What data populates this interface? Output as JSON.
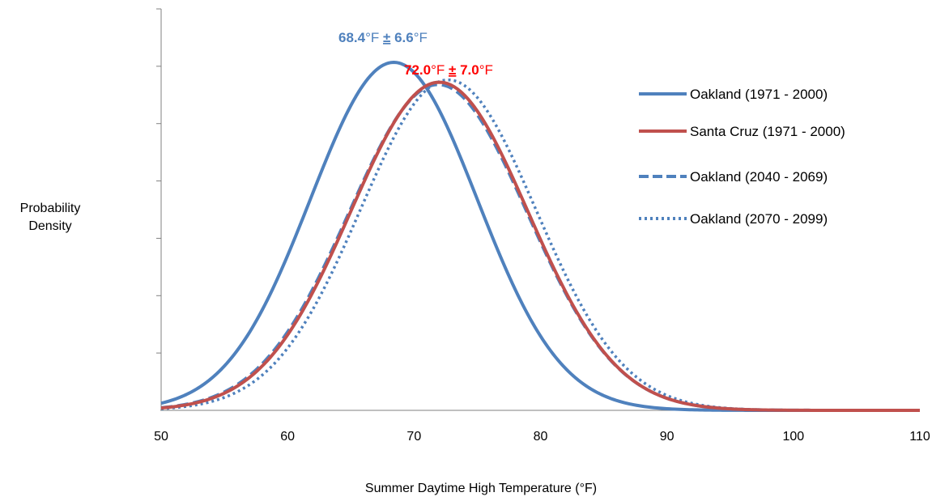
{
  "chart_data": {
    "type": "line",
    "xlabel": "Summer Daytime High Temperature (°F)",
    "ylabel_lines": [
      "Probability",
      "Density"
    ],
    "xlim": [
      50,
      110
    ],
    "x_ticks": [
      50,
      60,
      70,
      80,
      90,
      100,
      110
    ],
    "y_tick_count": 7,
    "y_axis_tick_labels": "none",
    "grid": false,
    "legend_position": "right",
    "series": [
      {
        "name": "Oakland (1971 - 2000)",
        "mean": 68.4,
        "sd": 6.6,
        "style": "solid",
        "color": "#4F81BD"
      },
      {
        "name": "Santa Cruz (1971 - 2000)",
        "mean": 72.0,
        "sd": 7.0,
        "style": "solid",
        "color": "#C0504D"
      },
      {
        "name": "Oakland (2040 - 2069)",
        "mean": 71.9,
        "sd": 7.05,
        "style": "dashed",
        "color": "#4F81BD"
      },
      {
        "name": "Oakland (2070 - 2099)",
        "mean": 72.7,
        "sd": 6.95,
        "style": "dotted",
        "color": "#4F81BD"
      }
    ],
    "annotations": [
      {
        "series": "Oakland (1971 - 2000)",
        "mean": "68.4",
        "pm": "±",
        "sd": "6.6",
        "unit": "°F",
        "color": "#4F81BD"
      },
      {
        "series": "Santa Cruz (1971 - 2000)",
        "mean": "72.0",
        "pm": "±",
        "sd": "7.0",
        "unit": "°F",
        "color": "#FF0000"
      }
    ]
  }
}
